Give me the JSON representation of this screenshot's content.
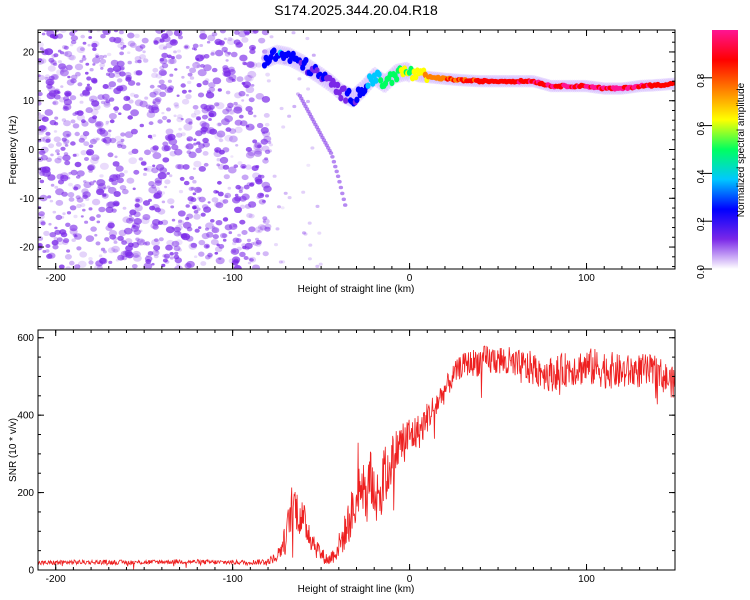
{
  "colors": {
    "noise": "#7a28e8",
    "snr_line": "#ee2020",
    "frame": "#000000",
    "background": "#ffffff"
  },
  "chart_data": [
    {
      "type": "heatmap",
      "title": "S174.2025.344.20.04.R18",
      "xlabel": "Height of straight line (km)",
      "ylabel": "Frequency (Hz)",
      "xlim": [
        -210,
        150
      ],
      "ylim": [
        -24.5,
        24.5
      ],
      "x_ticks": [
        -200,
        -100,
        0,
        100
      ],
      "x_tick_labels": [
        "-200",
        "-100",
        "0",
        "100"
      ],
      "y_ticks": [
        20,
        10,
        0,
        -10,
        -20
      ],
      "y_tick_labels": [
        "20",
        "10",
        "0",
        "-10",
        "-20"
      ],
      "grid": false,
      "noise_region_x": [
        -210,
        -80
      ],
      "signal_trace": {
        "x": [
          -82,
          -75,
          -68,
          -60,
          -52,
          -44,
          -38,
          -32,
          -26,
          -20,
          -14,
          -8,
          -2,
          5,
          12,
          20,
          30,
          40,
          55,
          70,
          80,
          90,
          100,
          110,
          120,
          130,
          140,
          150
        ],
        "freq": [
          18.5,
          19.5,
          19,
          17.5,
          15.5,
          13.5,
          11.5,
          10.5,
          12.5,
          15,
          13.5,
          15.5,
          16,
          15,
          14.8,
          14.5,
          14.2,
          14,
          14,
          14,
          13,
          13,
          13,
          12.5,
          12.5,
          13,
          13.2,
          13.5
        ],
        "amplitude": [
          0.25,
          0.3,
          0.25,
          0.2,
          0.2,
          0.15,
          0.15,
          0.2,
          0.25,
          0.4,
          0.45,
          0.5,
          0.55,
          0.6,
          0.75,
          0.8,
          0.82,
          0.85,
          0.88,
          0.92,
          0.92,
          0.95,
          0.92,
          0.95,
          0.95,
          0.92,
          0.92,
          0.9
        ]
      },
      "descending_trace": {
        "x": [
          -62,
          -56,
          -50,
          -44,
          -40,
          -36
        ],
        "freq": [
          11,
          7,
          3,
          -1,
          -6,
          -12
        ]
      }
    },
    {
      "type": "colorbar",
      "label": "Normalized spectral amplitude",
      "range": [
        0,
        1
      ],
      "ticks": [
        0,
        0.2,
        0.4,
        0.6,
        0.8
      ],
      "tick_labels": [
        "0.0",
        "0.2",
        "0.4",
        "0.6",
        "0.8"
      ],
      "colormap": [
        "#ffffff",
        "#7a28e8",
        "#0000ff",
        "#00c8ff",
        "#00ff60",
        "#ffff00",
        "#ff8000",
        "#ff0000",
        "#ff1493"
      ]
    },
    {
      "type": "line",
      "xlabel": "Height of straight line (km)",
      "ylabel": "SNR (10 * v/v)",
      "xlim": [
        -210,
        150
      ],
      "ylim": [
        0,
        620
      ],
      "x_ticks": [
        -200,
        -100,
        0,
        100
      ],
      "x_tick_labels": [
        "-200",
        "-100",
        "0",
        "100"
      ],
      "y_ticks": [
        0,
        200,
        400,
        600
      ],
      "y_tick_labels": [
        "0",
        "200",
        "400",
        "600"
      ],
      "grid": false,
      "series": [
        {
          "name": "SNR",
          "x": [
            -210,
            -190,
            -170,
            -150,
            -130,
            -110,
            -90,
            -80,
            -75,
            -70,
            -66,
            -62,
            -58,
            -54,
            -50,
            -46,
            -42,
            -38,
            -34,
            -30,
            -26,
            -22,
            -18,
            -14,
            -10,
            -6,
            -2,
            2,
            6,
            10,
            14,
            18,
            22,
            26,
            30,
            35,
            40,
            45,
            50,
            55,
            60,
            70,
            80,
            90,
            100,
            110,
            120,
            130,
            140,
            150
          ],
          "y": [
            18,
            20,
            20,
            20,
            22,
            20,
            20,
            22,
            35,
            80,
            180,
            140,
            110,
            70,
            40,
            25,
            45,
            80,
            130,
            170,
            200,
            220,
            190,
            240,
            280,
            320,
            340,
            350,
            360,
            395,
            420,
            450,
            480,
            510,
            530,
            535,
            540,
            540,
            545,
            535,
            525,
            520,
            505,
            520,
            525,
            520,
            510,
            515,
            510,
            480
          ],
          "noise_amplitude": [
            6,
            6,
            6,
            6,
            6,
            6,
            6,
            8,
            15,
            40,
            60,
            55,
            45,
            35,
            20,
            15,
            25,
            40,
            60,
            80,
            90,
            90,
            80,
            80,
            70,
            60,
            60,
            50,
            45,
            40,
            40,
            35,
            30,
            30,
            30,
            35,
            40,
            40,
            40,
            45,
            45,
            45,
            45,
            45,
            50,
            50,
            45,
            45,
            45,
            40
          ]
        }
      ]
    }
  ]
}
